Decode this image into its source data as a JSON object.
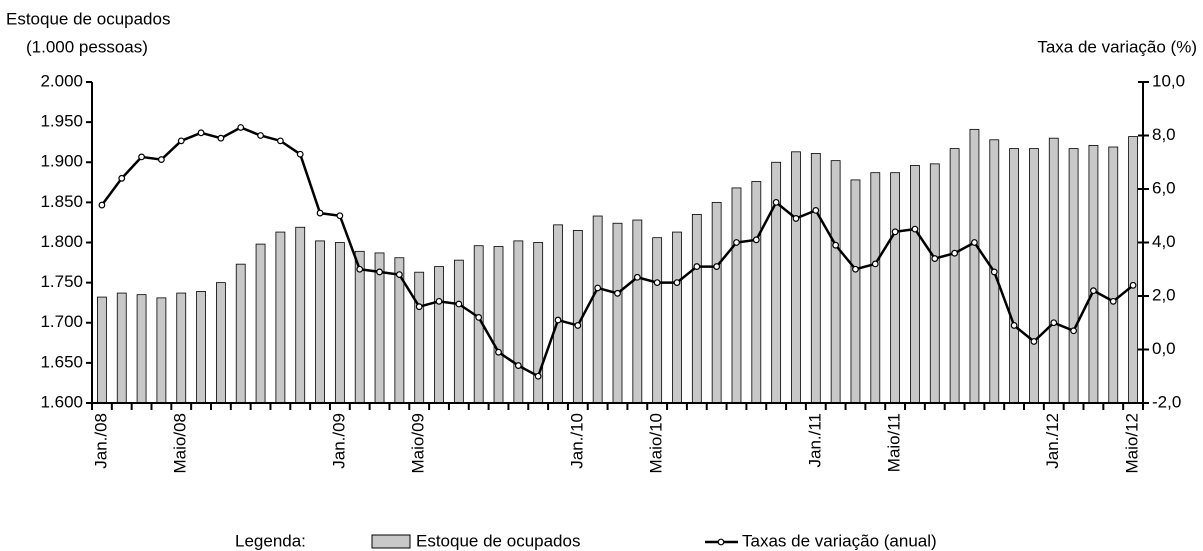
{
  "chart_data": {
    "type": "bar-line",
    "ylabel": [
      "Estoque de ocupados",
      "(1.000 pessoas)"
    ],
    "y2label": "Taxa de variação (%)",
    "categories": [
      "Jan./08",
      null,
      null,
      null,
      "Maio/08",
      null,
      null,
      null,
      null,
      null,
      null,
      null,
      "Jan./09",
      null,
      null,
      null,
      "Maio/09",
      null,
      null,
      null,
      null,
      null,
      null,
      null,
      "Jan./10",
      null,
      null,
      null,
      "Maio/10",
      null,
      null,
      null,
      null,
      null,
      null,
      null,
      "Jan./11",
      null,
      null,
      null,
      "Maio/11",
      null,
      null,
      null,
      null,
      null,
      null,
      null,
      "Jan./12",
      null,
      null,
      null,
      "Maio/12"
    ],
    "series": [
      {
        "name": "Estoque de ocupados",
        "type": "bar",
        "color": "#c8c8c8",
        "values": [
          1732,
          1737,
          1735,
          1731,
          1737,
          1739,
          1750,
          1773,
          1798,
          1813,
          1819,
          1802,
          1800,
          1789,
          1787,
          1781,
          1763,
          1770,
          1778,
          1796,
          1795,
          1802,
          1800,
          1822,
          1815,
          1833,
          1824,
          1828,
          1806,
          1813,
          1835,
          1850,
          1868,
          1876,
          1900,
          1913,
          1911,
          1902,
          1878,
          1887,
          1887,
          1896,
          1898,
          1917,
          1941,
          1928,
          1917,
          1917,
          1930,
          1917,
          1921,
          1919,
          1932
        ]
      },
      {
        "name": "Taxas de variação (anual)",
        "type": "line",
        "axis": "y2",
        "color": "#000000",
        "values": [
          5.4,
          6.4,
          7.2,
          7.1,
          7.8,
          8.1,
          7.9,
          8.3,
          8.0,
          7.8,
          7.3,
          5.1,
          5.0,
          3.0,
          2.9,
          2.8,
          1.6,
          1.8,
          1.7,
          1.2,
          -0.1,
          -0.6,
          -1.0,
          1.1,
          0.9,
          2.3,
          2.1,
          2.7,
          2.5,
          2.5,
          3.1,
          3.1,
          4.0,
          4.1,
          5.5,
          4.9,
          5.2,
          3.9,
          3.0,
          3.2,
          4.4,
          4.5,
          3.4,
          3.6,
          4.0,
          2.9,
          0.9,
          0.3,
          1.0,
          0.7,
          2.2,
          1.8,
          2.4
        ]
      }
    ],
    "ylim": [
      1600,
      2000
    ],
    "yticks": [
      {
        "value": 1600,
        "label": "1.600"
      },
      {
        "value": 1650,
        "label": "1.650"
      },
      {
        "value": 1700,
        "label": "1.700"
      },
      {
        "value": 1750,
        "label": "1.750"
      },
      {
        "value": 1800,
        "label": "1.800"
      },
      {
        "value": 1850,
        "label": "1.850"
      },
      {
        "value": 1900,
        "label": "1.900"
      },
      {
        "value": 1950,
        "label": "1.950"
      },
      {
        "value": 2000,
        "label": "2.000"
      }
    ],
    "y2lim": [
      -2,
      10
    ],
    "y2ticks": [
      {
        "value": -2,
        "label": "-2,0"
      },
      {
        "value": 0,
        "label": "0,0"
      },
      {
        "value": 2,
        "label": "2,0"
      },
      {
        "value": 4,
        "label": "4,0"
      },
      {
        "value": 6,
        "label": "6,0"
      },
      {
        "value": 8,
        "label": "8,0"
      },
      {
        "value": 10,
        "label": "10,0"
      }
    ],
    "legend_title": "Legenda:",
    "legend": "bottom"
  }
}
